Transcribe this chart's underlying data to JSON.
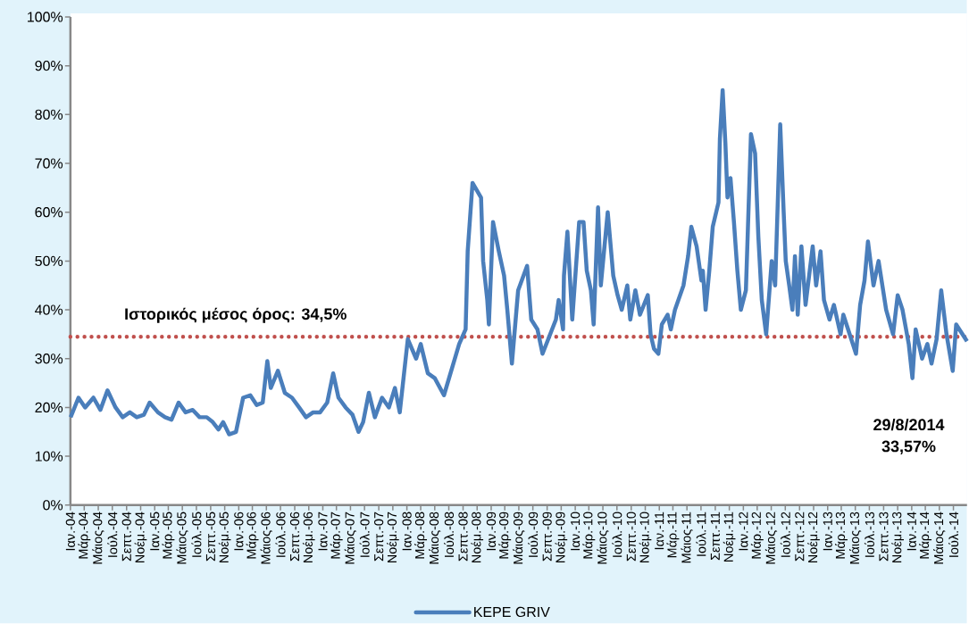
{
  "chart_data": {
    "type": "line",
    "x": [
      "2004-01-02",
      "2004-02-05",
      "2004-03-05",
      "2004-04-10",
      "2004-05-10",
      "2004-06-10",
      "2004-07-15",
      "2004-08-15",
      "2004-09-15",
      "2004-10-15",
      "2004-11-15",
      "2004-12-10",
      "2005-01-15",
      "2005-02-15",
      "2005-03-15",
      "2005-04-15",
      "2005-05-15",
      "2005-06-15",
      "2005-07-15",
      "2005-08-15",
      "2005-09-10",
      "2005-10-05",
      "2005-10-25",
      "2005-11-20",
      "2005-12-20",
      "2006-01-20",
      "2006-02-20",
      "2006-03-20",
      "2006-04-15",
      "2006-05-05",
      "2006-05-20",
      "2006-06-20",
      "2006-07-20",
      "2006-08-20",
      "2006-09-20",
      "2006-10-20",
      "2006-11-20",
      "2006-12-20",
      "2007-01-20",
      "2007-02-15",
      "2007-03-10",
      "2007-04-10",
      "2007-05-10",
      "2007-06-05",
      "2007-06-25",
      "2007-07-20",
      "2007-08-15",
      "2007-09-15",
      "2007-10-15",
      "2007-11-10",
      "2007-12-01",
      "2008-01-05",
      "2008-02-10",
      "2008-03-01",
      "2008-04-01",
      "2008-05-01",
      "2008-06-10",
      "2008-08-15",
      "2008-09-12",
      "2008-09-21",
      "2008-10-12",
      "2008-11-18",
      "2008-11-27",
      "2008-12-15",
      "2008-12-22",
      "2009-01-09",
      "2009-02-03",
      "2009-02-26",
      "2009-03-12",
      "2009-04-01",
      "2009-04-28",
      "2009-06-06",
      "2009-06-24",
      "2009-07-21",
      "2009-08-12",
      "2009-10-09",
      "2009-10-21",
      "2009-11-09",
      "2009-11-13",
      "2009-11-28",
      "2009-12-19",
      "2010-01-18",
      "2010-02-06",
      "2010-02-20",
      "2010-03-10",
      "2010-03-22",
      "2010-04-10",
      "2010-04-22",
      "2010-05-22",
      "2010-06-15",
      "2010-07-04",
      "2010-07-22",
      "2010-08-15",
      "2010-08-28",
      "2010-09-19",
      "2010-10-09",
      "2010-11-12",
      "2010-11-24",
      "2010-12-09",
      "2010-12-28",
      "2011-01-12",
      "2011-02-06",
      "2011-02-20",
      "2011-03-10",
      "2011-04-16",
      "2011-05-06",
      "2011-05-20",
      "2011-06-12",
      "2011-07-03",
      "2011-07-09",
      "2011-07-21",
      "2011-08-06",
      "2011-08-21",
      "2011-09-15",
      "2011-09-21",
      "2011-10-03",
      "2011-10-15",
      "2011-10-24",
      "2011-11-06",
      "2011-11-21",
      "2011-12-06",
      "2011-12-21",
      "2012-01-12",
      "2012-02-03",
      "2012-02-21",
      "2012-03-06",
      "2012-03-21",
      "2012-04-09",
      "2012-05-03",
      "2012-05-18",
      "2012-06-09",
      "2012-06-24",
      "2012-07-03",
      "2012-07-18",
      "2012-08-01",
      "2012-08-12",
      "2012-08-24",
      "2012-09-09",
      "2012-09-27",
      "2012-10-28",
      "2012-11-12",
      "2012-12-01",
      "2012-12-16",
      "2013-01-09",
      "2013-01-28",
      "2013-02-26",
      "2013-03-10",
      "2013-05-04",
      "2013-05-22",
      "2013-06-10",
      "2013-06-25",
      "2013-07-19",
      "2013-08-10",
      "2013-09-12",
      "2013-10-12",
      "2013-11-01",
      "2013-11-22",
      "2013-12-19",
      "2014-01-04",
      "2014-01-18",
      "2014-02-15",
      "2014-03-10",
      "2014-03-28",
      "2014-04-19",
      "2014-05-09",
      "2014-06-01",
      "2014-06-28",
      "2014-07-13",
      "2014-08-29"
    ],
    "series": [
      {
        "name": "KEPE GRIV",
        "color": "#4a7ebb",
        "values": [
          18,
          22,
          20,
          22,
          19.5,
          23.5,
          20,
          18,
          19,
          18,
          18.5,
          21,
          19,
          18,
          17.5,
          21,
          19,
          19.5,
          18,
          18,
          17,
          15.5,
          17,
          14.5,
          15,
          22,
          22.5,
          20.5,
          21,
          29.5,
          24,
          27.5,
          23,
          22,
          20,
          18,
          19,
          19,
          21,
          27,
          22,
          20,
          18.5,
          15,
          17,
          23,
          18,
          22,
          20,
          24,
          19,
          34,
          30,
          33,
          27,
          26,
          22.5,
          33,
          36,
          52,
          66,
          63,
          50,
          42,
          37,
          58,
          52,
          47,
          40,
          29,
          44,
          49,
          38,
          36,
          31,
          38,
          42,
          36,
          47,
          56,
          38,
          58,
          58,
          48,
          44,
          37,
          61,
          45,
          60,
          47,
          43,
          40,
          45,
          38,
          44,
          39,
          43,
          35,
          32,
          31,
          37,
          39,
          36,
          40,
          45,
          51,
          57,
          53,
          46,
          48,
          40,
          48,
          57,
          62,
          75,
          85,
          74,
          63,
          67,
          58,
          48,
          40,
          44,
          76,
          72,
          55,
          42,
          35,
          50,
          45,
          78,
          60,
          50,
          45,
          40,
          51,
          39,
          53,
          41,
          53,
          45,
          52,
          42,
          38,
          41,
          35,
          39,
          31,
          41,
          46,
          54,
          45,
          50,
          40,
          35,
          43,
          40,
          33,
          26,
          36,
          30,
          33,
          29,
          34,
          44,
          35,
          27.5,
          37,
          33.57
        ]
      }
    ],
    "xlim": [
      "2004-01-01",
      "2014-08-29"
    ],
    "xticks": [
      {
        "value": "2004-01-01",
        "label": "Ιαν.-04"
      },
      {
        "value": "2004-03-01",
        "label": "Μάρ.-04"
      },
      {
        "value": "2004-05-01",
        "label": "Μάιος-04"
      },
      {
        "value": "2004-07-01",
        "label": "Ιούλ.-04"
      },
      {
        "value": "2004-09-01",
        "label": "Σεπτ.-04"
      },
      {
        "value": "2004-11-01",
        "label": "Νοέμ.-04"
      },
      {
        "value": "2005-01-01",
        "label": "Ιαν.-05"
      },
      {
        "value": "2005-03-01",
        "label": "Μάρ.-05"
      },
      {
        "value": "2005-05-01",
        "label": "Μάιος-05"
      },
      {
        "value": "2005-07-01",
        "label": "Ιούλ.-05"
      },
      {
        "value": "2005-09-01",
        "label": "Σεπτ.-05"
      },
      {
        "value": "2005-11-01",
        "label": "Νοέμ.-05"
      },
      {
        "value": "2006-01-01",
        "label": "Ιαν.-06"
      },
      {
        "value": "2006-03-01",
        "label": "Μάρ.-06"
      },
      {
        "value": "2006-05-01",
        "label": "Μάιος-06"
      },
      {
        "value": "2006-07-01",
        "label": "Ιούλ.-06"
      },
      {
        "value": "2006-09-01",
        "label": "Σεπτ.-06"
      },
      {
        "value": "2006-11-01",
        "label": "Νοέμ.-06"
      },
      {
        "value": "2007-01-01",
        "label": "Ιαν.-07"
      },
      {
        "value": "2007-03-01",
        "label": "Μάρ.-07"
      },
      {
        "value": "2007-05-01",
        "label": "Μάιος-07"
      },
      {
        "value": "2007-07-01",
        "label": "Ιούλ.-07"
      },
      {
        "value": "2007-09-01",
        "label": "Σεπτ.-07"
      },
      {
        "value": "2007-11-01",
        "label": "Νοέμ.-07"
      },
      {
        "value": "2008-01-01",
        "label": "Ιαν.-08"
      },
      {
        "value": "2008-03-01",
        "label": "Μάρ.-08"
      },
      {
        "value": "2008-05-01",
        "label": "Μάιος-08"
      },
      {
        "value": "2008-07-01",
        "label": "Ιούλ.-08"
      },
      {
        "value": "2008-09-01",
        "label": "Σεπτ.-08"
      },
      {
        "value": "2008-11-01",
        "label": "Νοέμ.-08"
      },
      {
        "value": "2009-01-01",
        "label": "Ιαν.-09"
      },
      {
        "value": "2009-03-01",
        "label": "Μάρ.-09"
      },
      {
        "value": "2009-05-01",
        "label": "Μάιος-09"
      },
      {
        "value": "2009-07-01",
        "label": "Ιούλ.-09"
      },
      {
        "value": "2009-09-01",
        "label": "Σεπτ.-09"
      },
      {
        "value": "2009-11-01",
        "label": "Νοέμ.-09"
      },
      {
        "value": "2010-01-01",
        "label": "Ιαν.-10"
      },
      {
        "value": "2010-03-01",
        "label": "Μάρ.-10"
      },
      {
        "value": "2010-05-01",
        "label": "Μάιος-10"
      },
      {
        "value": "2010-07-01",
        "label": "Ιούλ.-10"
      },
      {
        "value": "2010-09-01",
        "label": "Σεπτ.-10"
      },
      {
        "value": "2010-11-01",
        "label": "Νοέμ.-10"
      },
      {
        "value": "2011-01-01",
        "label": "Ιαν.-11"
      },
      {
        "value": "2011-03-01",
        "label": "Μάρ.-11"
      },
      {
        "value": "2011-05-01",
        "label": "Μάιος-11"
      },
      {
        "value": "2011-07-01",
        "label": "Ιούλ.-11"
      },
      {
        "value": "2011-09-01",
        "label": "Σεπτ.-11"
      },
      {
        "value": "2011-11-01",
        "label": "Νοέμ.-11"
      },
      {
        "value": "2012-01-01",
        "label": "Ιαν.-12"
      },
      {
        "value": "2012-03-01",
        "label": "Μάρ.-12"
      },
      {
        "value": "2012-05-01",
        "label": "Μάιος-12"
      },
      {
        "value": "2012-07-01",
        "label": "Ιούλ.-12"
      },
      {
        "value": "2012-09-01",
        "label": "Σεπτ.-12"
      },
      {
        "value": "2012-11-01",
        "label": "Νοέμ.-12"
      },
      {
        "value": "2013-01-01",
        "label": "Ιαν.-13"
      },
      {
        "value": "2013-03-01",
        "label": "Μάρ.-13"
      },
      {
        "value": "2013-05-01",
        "label": "Μάιος-13"
      },
      {
        "value": "2013-07-01",
        "label": "Ιούλ.-13"
      },
      {
        "value": "2013-09-01",
        "label": "Σεπτ.-13"
      },
      {
        "value": "2013-11-01",
        "label": "Νοέμ.-13"
      },
      {
        "value": "2014-01-01",
        "label": "Ιαν.-14"
      },
      {
        "value": "2014-03-01",
        "label": "Μάρ.-14"
      },
      {
        "value": "2014-05-01",
        "label": "Μάιος-14"
      },
      {
        "value": "2014-07-01",
        "label": "Ιούλ.-14"
      }
    ],
    "ylim": [
      0,
      100
    ],
    "yticks": [
      {
        "value": 0,
        "label": "0%"
      },
      {
        "value": 10,
        "label": "10%"
      },
      {
        "value": 20,
        "label": "20%"
      },
      {
        "value": 30,
        "label": "30%"
      },
      {
        "value": 40,
        "label": "40%"
      },
      {
        "value": 50,
        "label": "50%"
      },
      {
        "value": 60,
        "label": "60%"
      },
      {
        "value": 70,
        "label": "70%"
      },
      {
        "value": 80,
        "label": "80%"
      },
      {
        "value": 90,
        "label": "90%"
      },
      {
        "value": 100,
        "label": "100%"
      }
    ],
    "ref_lines": [
      {
        "axis": "y",
        "value": 34.5,
        "label": "Ιστορικός μέσος όρος: 34,5%",
        "color": "#c0504d",
        "line_style": "dotted"
      }
    ],
    "annotations": [
      "29/8/2014",
      "33,57%"
    ],
    "legend": "bottom",
    "marker": "none",
    "line_style": "solid"
  }
}
